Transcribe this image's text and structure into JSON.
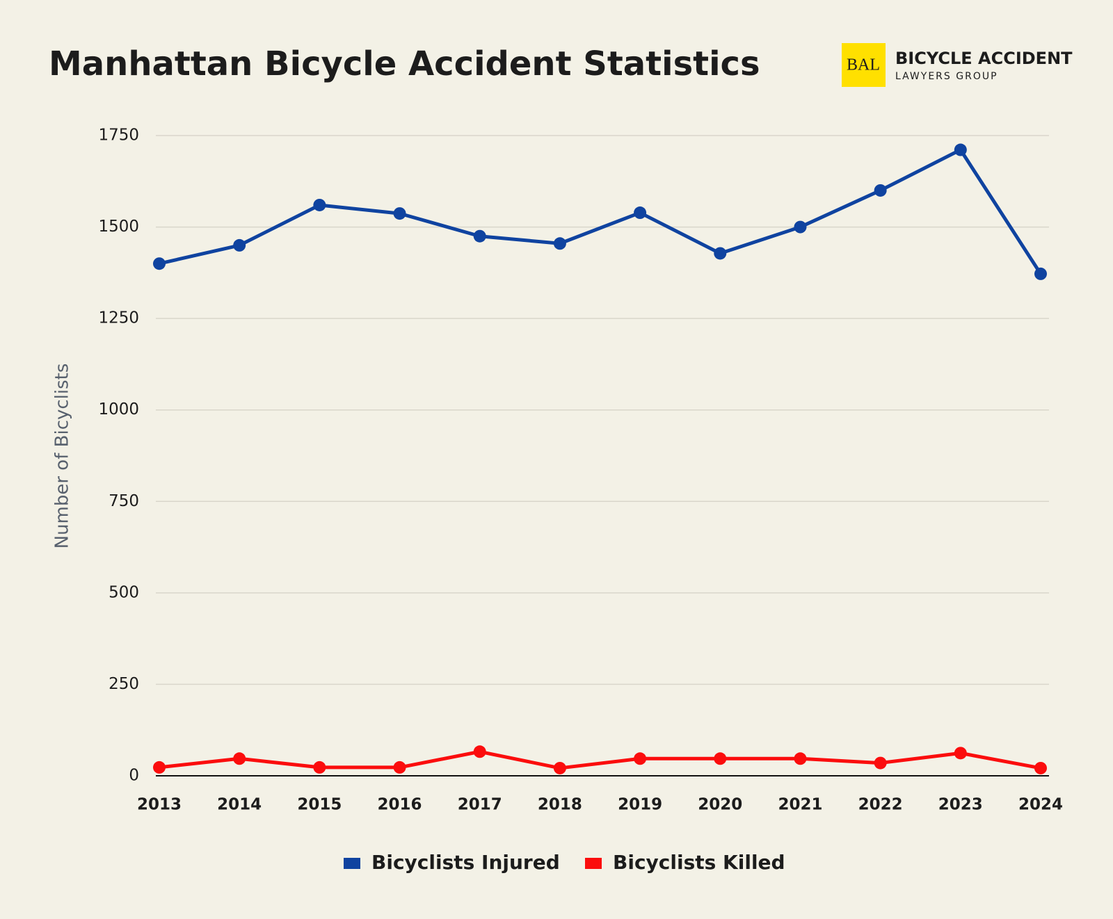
{
  "logo": {
    "mark": "BAL",
    "name": "BICYCLE ACCIDENT",
    "subname": "LAWYERS GROUP"
  },
  "chart_data": {
    "type": "line",
    "title": "Manhattan Bicycle Accident Statistics",
    "y_label": "Number of Bicyclists",
    "categories": [
      "2013",
      "2014",
      "2015",
      "2016",
      "2017",
      "2018",
      "2019",
      "2020",
      "2021",
      "2022",
      "2023",
      "2024"
    ],
    "series": [
      {
        "name": "Bicyclists Injured",
        "color": "#0f43a0",
        "values": [
          1400,
          1450,
          1560,
          1537,
          1475,
          1455,
          1539,
          1428,
          1500,
          1600,
          1711,
          1372
        ]
      },
      {
        "name": "Bicyclists Killed",
        "color": "#fb0d0d",
        "values": [
          23,
          47,
          23,
          23,
          66,
          21,
          47,
          47,
          47,
          35,
          62,
          21
        ]
      }
    ],
    "ylim": [
      0,
      1750
    ],
    "yticks": [
      0,
      250,
      500,
      750,
      1000,
      1250,
      1500,
      1750
    ],
    "grid": true
  }
}
